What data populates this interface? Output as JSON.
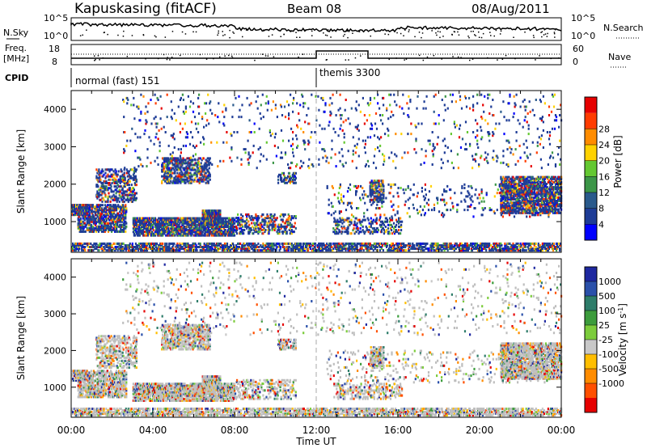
{
  "header": {
    "station": "Kapuskasing (fitACF)",
    "beam": "Beam 08",
    "date": "08/Aug/2011"
  },
  "top_panels": {
    "nsky_label": "N.Sky",
    "nsky_ticks": [
      "10^5",
      "10^0"
    ],
    "nsearch_label": "N.Search",
    "nsearch_ticks": [
      "10^5",
      "10^0"
    ],
    "freq_label_1": "Freq.",
    "freq_label_2": "[MHz]",
    "freq_ticks": [
      "18",
      "8"
    ],
    "nave_label": "Nave",
    "nave_ticks": [
      "60",
      "0"
    ],
    "cpid_label": "CPID",
    "cpid_modes": [
      "normal (fast) 151",
      "themis 3300"
    ]
  },
  "colors": {
    "power_scale": [
      "#0000ff",
      "#1e3c96",
      "#2a5a8c",
      "#3c9648",
      "#64c832",
      "#ffd200",
      "#ff8c00",
      "#ff3c00",
      "#e60000"
    ],
    "velocity_scale": [
      "#1e28a0",
      "#2a50aa",
      "#2e7d6a",
      "#3c9c3c",
      "#7ccc3c",
      "#c8c8c8",
      "#ffbe00",
      "#ff8c00",
      "#ff5000",
      "#e60000"
    ],
    "ground_scatter": "#bebebe"
  },
  "chart_data": [
    {
      "type": "heatmap",
      "title": "",
      "xlabel": "Time UT",
      "ylabel": "Slant Range [km]",
      "xlim": [
        "00:00",
        "00:00"
      ],
      "ylim": [
        180,
        4500
      ],
      "x_ticks": [
        "00:00",
        "04:00",
        "08:00",
        "12:00",
        "16:00",
        "20:00",
        "00:00"
      ],
      "y_ticks": [
        1000,
        2000,
        3000,
        4000
      ],
      "colorbar_label": "Power [dB]",
      "colorbar_ticks": [
        4,
        8,
        12,
        16,
        20,
        24,
        28
      ],
      "grid": false,
      "annotations": [
        "dashed vertical line at 12:00 UT"
      ]
    },
    {
      "type": "heatmap",
      "title": "",
      "xlabel": "Time UT",
      "ylabel": "Slant Range [km]",
      "xlim": [
        "00:00",
        "00:00"
      ],
      "ylim": [
        180,
        4500
      ],
      "x_ticks": [
        "00:00",
        "04:00",
        "08:00",
        "12:00",
        "16:00",
        "20:00",
        "00:00"
      ],
      "y_ticks": [
        1000,
        2000,
        3000,
        4000
      ],
      "colorbar_label": "Velocity [m s^-1]",
      "colorbar_ticks": [
        1000,
        500,
        100,
        25,
        -25,
        -100,
        -500,
        -1000
      ],
      "grid": false,
      "annotations": [
        "dashed vertical line at 12:00 UT"
      ]
    }
  ]
}
